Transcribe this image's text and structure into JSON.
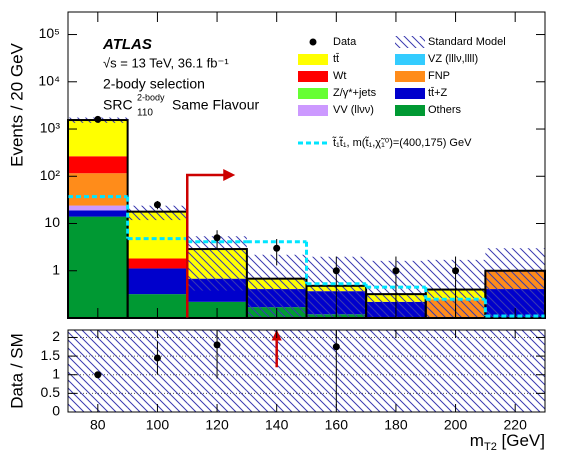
{
  "chart_data": [
    {
      "type": "histogram",
      "ylabel": "Events / 20 GeV",
      "annotations": {
        "experiment": "ATLAS",
        "energy": "√s = 13 TeV, 36.1 fb⁻¹",
        "selection": "2-body selection",
        "region": {
          "base": "SRC",
          "sup": "2-body",
          "sub": "110",
          "text": "Same Flavour"
        }
      },
      "bins": [
        70,
        90,
        110,
        130,
        150,
        170,
        190,
        210,
        230
      ],
      "xlim": [
        70,
        230
      ],
      "xticks": [
        80,
        100,
        120,
        140,
        160,
        180,
        200,
        220
      ],
      "ylim": [
        0.1,
        300000
      ],
      "log_y": true,
      "yticks": [
        1,
        10,
        {
          "value": 100,
          "label": "10²"
        },
        {
          "value": 1000,
          "label": "10³"
        },
        {
          "value": 10000,
          "label": "10⁴"
        },
        {
          "value": 100000,
          "label": "10⁵"
        }
      ],
      "series": [
        {
          "name": "Others",
          "color": "#009933",
          "values": [
            14,
            0.32,
            0.22,
            0.17,
            0.12,
            0,
            0,
            0
          ]
        },
        {
          "name": "tt̄+Z",
          "color": "#0000cc",
          "values": [
            5,
            0.8,
            0.46,
            0.24,
            0.25,
            0.22,
            0,
            0.41
          ]
        },
        {
          "name": "VV (llνν)",
          "color": "#cc99ff",
          "values": [
            5,
            0,
            0,
            0,
            0,
            0,
            0,
            0
          ]
        },
        {
          "name": "FNP",
          "color": "#ff8c1a",
          "values": [
            92,
            0,
            0,
            0,
            0,
            0,
            0.25,
            0.59
          ]
        },
        {
          "name": "Wt",
          "color": "#ff0000",
          "values": [
            149,
            0.7,
            0,
            0,
            0,
            0,
            0,
            0
          ]
        },
        {
          "name": "Z/γ*+jets",
          "color": "#66ff33",
          "values": [
            0,
            0,
            0,
            0,
            0,
            0,
            0,
            0
          ]
        },
        {
          "name": "tt̄",
          "color": "#ffff00",
          "values": [
            1285,
            16,
            2.2,
            0.27,
            0.11,
            0.1,
            0.15,
            0
          ]
        },
        {
          "name": "VZ (lllν,llll)",
          "color": "#33ccff",
          "values": [
            0,
            0,
            0,
            0,
            0,
            0,
            0,
            0
          ]
        }
      ],
      "data": {
        "name": "Data",
        "x": [
          80,
          100,
          120,
          140,
          160,
          180,
          200
        ],
        "values": [
          1600,
          25,
          5,
          3,
          1,
          1,
          1
        ],
        "errors": [
          40,
          5,
          2.2,
          1.7,
          1,
          1,
          1
        ]
      },
      "uncertainty": {
        "name": "Standard Model",
        "values": [
          200,
          6,
          2.5,
          1.5,
          1.5,
          1.3,
          1.3,
          2
        ]
      },
      "signal": {
        "name": "t̃₁t̃₁, m(t̃₁,χ̃₁⁰)=(400,175) GeV",
        "color": "#00e5ff",
        "values": [
          37,
          4.8,
          4.1,
          4.1,
          0.53,
          0.45,
          0.25,
          0.11
        ]
      },
      "cut": 110
    },
    {
      "type": "ratio",
      "ylabel": "Data / SM",
      "xlabel": [
        "m",
        "T2",
        " [GeV]"
      ],
      "bins": [
        70,
        90,
        110,
        130,
        150,
        170,
        190,
        210,
        230
      ],
      "xlim": [
        70,
        230
      ],
      "xticks": [
        80,
        100,
        120,
        140,
        160,
        180,
        200,
        220
      ],
      "ylim": [
        0,
        2.2
      ],
      "yticks": [
        0,
        0.5,
        1,
        1.5,
        2
      ],
      "grid": true,
      "x": [
        80,
        100,
        120,
        140,
        160,
        180,
        200,
        220
      ],
      "values": [
        1.0,
        1.45,
        1.8,
        null,
        1.75,
        null,
        null,
        null
      ],
      "errors": [
        0.03,
        0.45,
        0.9,
        null,
        1.6,
        null,
        null,
        null
      ],
      "uncertainty_low": [
        0,
        0,
        0,
        0,
        0,
        0,
        0,
        0
      ],
      "uncertainty_high": [
        2.2,
        2.2,
        2.2,
        2.2,
        2.2,
        2.2,
        2.2,
        2.2
      ],
      "offscale": [
        140
      ]
    }
  ]
}
